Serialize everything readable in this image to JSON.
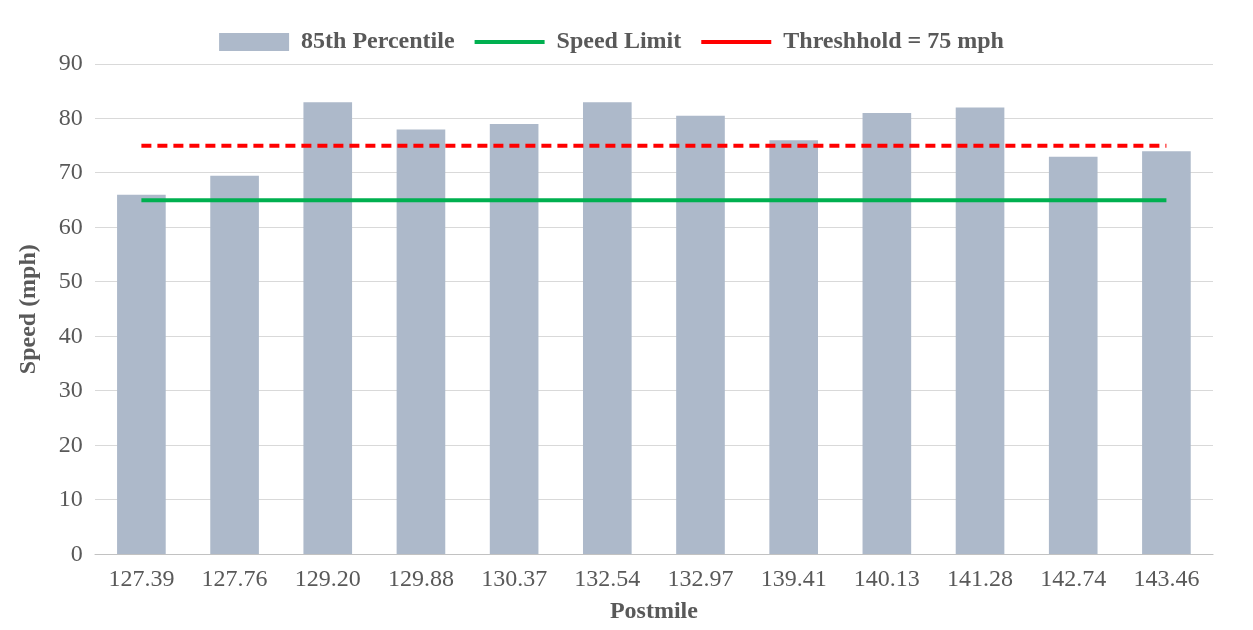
{
  "chart_data": {
    "type": "bar",
    "xlabel": "Postmile",
    "ylabel": "Speed (mph)",
    "categories": [
      "127.39",
      "127.76",
      "129.20",
      "129.88",
      "130.37",
      "132.54",
      "132.97",
      "139.41",
      "140.13",
      "141.28",
      "142.74",
      "143.46"
    ],
    "series": [
      {
        "name": "85th Percentile",
        "color": "#adb9ca",
        "values": [
          66,
          69.5,
          83,
          78,
          79,
          83,
          80.5,
          76,
          81,
          82,
          73,
          74
        ]
      },
      {
        "name": "Speed Limit",
        "type": "line",
        "color": "#00b050",
        "line_style": "solid",
        "values": [
          65,
          65,
          65,
          65,
          65,
          65,
          65,
          65,
          65,
          65,
          65,
          65
        ]
      },
      {
        "name": "Threshhold = 75 mph",
        "type": "line",
        "color": "#ff0000",
        "line_style": "dashed",
        "values": [
          75,
          75,
          75,
          75,
          75,
          75,
          75,
          75,
          75,
          75,
          75,
          75
        ]
      }
    ],
    "ylim": [
      0,
      90
    ],
    "yticks": [
      0,
      10,
      20,
      30,
      40,
      50,
      60,
      70,
      80,
      90
    ],
    "grid": "y",
    "legend": "top",
    "marker": "none"
  }
}
